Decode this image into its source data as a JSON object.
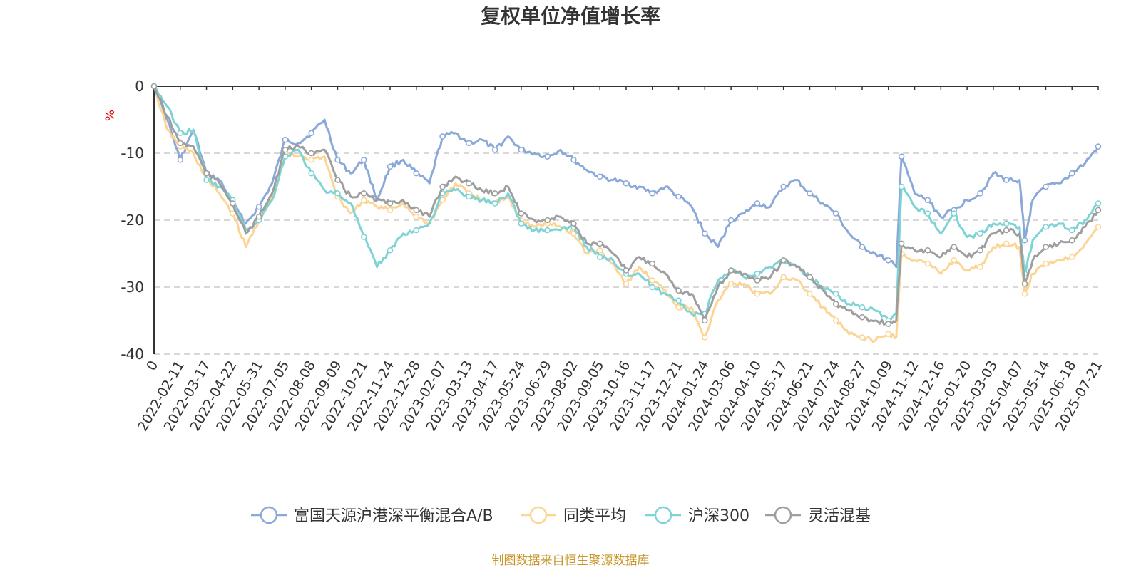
{
  "chart_data": {
    "type": "line",
    "title": "复权单位净值增长率",
    "ylabel": "%",
    "ylim": [
      -40,
      0
    ],
    "yticks": [
      "0",
      "-10",
      "-20",
      "-30",
      "-40"
    ],
    "ytick_values": [
      0,
      -10,
      -20,
      -30,
      -40
    ],
    "grid": true,
    "legend_position": "bottom",
    "source": "制图数据来自恒生聚源数据库",
    "x_labels": [
      "0",
      "2022-02-11",
      "2022-03-17",
      "2022-04-22",
      "2022-05-31",
      "2022-07-05",
      "2022-08-08",
      "2022-09-09",
      "2022-10-21",
      "2022-11-24",
      "2022-12-28",
      "2023-02-07",
      "2023-03-13",
      "2023-04-17",
      "2023-05-24",
      "2023-06-29",
      "2023-08-02",
      "2023-09-05",
      "2023-10-16",
      "2023-11-17",
      "2023-12-21",
      "2024-01-24",
      "2024-03-06",
      "2024-04-10",
      "2024-05-17",
      "2024-06-21",
      "2024-07-24",
      "2024-08-27",
      "2024-10-09",
      "2024-11-12",
      "2024-12-16",
      "2025-01-20",
      "2025-03-03",
      "2025-04-07",
      "2025-05-14",
      "2025-06-18",
      "2025-07-21"
    ],
    "x": [
      0,
      0.5,
      1,
      1.5,
      2,
      2.5,
      3,
      3.5,
      4,
      4.5,
      5,
      5.5,
      6,
      6.5,
      7,
      7.5,
      8,
      8.5,
      9,
      9.5,
      10,
      10.5,
      11,
      11.5,
      12,
      12.5,
      13,
      13.5,
      14,
      14.5,
      15,
      15.5,
      16,
      16.5,
      17,
      17.5,
      18,
      18.5,
      19,
      19.5,
      20,
      20.5,
      21,
      21.5,
      22,
      22.5,
      23,
      23.5,
      24,
      24.5,
      25,
      25.5,
      26,
      26.5,
      27,
      27.5,
      28,
      28.3,
      28.5,
      29,
      29.5,
      30,
      30.5,
      31,
      31.5,
      32,
      32.5,
      33,
      33.2,
      33.5,
      34,
      34.5,
      35,
      35.5,
      36
    ],
    "series": [
      {
        "name": "富国天源沪港深平衡混合A/B",
        "color": "#8aa8d8",
        "values": [
          0,
          -5,
          -11,
          -6.5,
          -13,
          -14,
          -17.5,
          -20.5,
          -18,
          -14.5,
          -8,
          -8.5,
          -7,
          -5,
          -11,
          -13,
          -11,
          -17,
          -12,
          -11,
          -13,
          -14.5,
          -7.5,
          -7,
          -8.5,
          -8,
          -9.5,
          -7.5,
          -9.5,
          -10,
          -10.5,
          -9.5,
          -11,
          -12.5,
          -13.5,
          -14,
          -14.5,
          -15,
          -16,
          -15,
          -16.5,
          -18,
          -22,
          -24,
          -20,
          -19,
          -17.5,
          -18,
          -15,
          -14,
          -16,
          -17.5,
          -19,
          -22,
          -24,
          -25,
          -26,
          -27,
          -10.5,
          -16,
          -17,
          -19.5,
          -18.5,
          -17,
          -16,
          -13,
          -14,
          -14,
          -23,
          -17,
          -15,
          -14.5,
          -13,
          -11.5,
          -9
        ]
      },
      {
        "name": "同类平均",
        "color": "#fcd494",
        "values": [
          0,
          -6.5,
          -9,
          -10,
          -14,
          -16,
          -19,
          -24,
          -20,
          -16.5,
          -10,
          -10.5,
          -11,
          -10.5,
          -16.5,
          -19,
          -17,
          -18,
          -18.5,
          -17.5,
          -19.5,
          -20.5,
          -17,
          -14.5,
          -16,
          -17,
          -17.5,
          -16.5,
          -20,
          -21,
          -20.5,
          -21,
          -22,
          -25,
          -24.5,
          -26.5,
          -29.5,
          -27,
          -29,
          -30.5,
          -33,
          -33,
          -37.5,
          -32,
          -29.5,
          -29.5,
          -31,
          -31,
          -28.5,
          -29,
          -31,
          -33,
          -35,
          -37,
          -37.5,
          -38,
          -37,
          -37.5,
          -25,
          -26,
          -26.5,
          -28,
          -26,
          -27.5,
          -27,
          -24,
          -23.5,
          -24,
          -31,
          -28,
          -26.5,
          -26,
          -25.5,
          -23.5,
          -21
        ]
      },
      {
        "name": "沪深300",
        "color": "#7dd3d6",
        "values": [
          0,
          -3,
          -7,
          -6.5,
          -14,
          -15,
          -17,
          -21.5,
          -20,
          -17,
          -10.5,
          -9.5,
          -13,
          -15.5,
          -16,
          -17.5,
          -22.5,
          -27,
          -24.5,
          -22,
          -21.5,
          -20.5,
          -16,
          -15.5,
          -16.5,
          -17,
          -17.5,
          -16,
          -20.5,
          -21.5,
          -21.5,
          -21.5,
          -21,
          -24,
          -25.5,
          -26,
          -28,
          -28,
          -30,
          -31,
          -32,
          -34,
          -34,
          -29,
          -27.5,
          -28.5,
          -28,
          -27,
          -26,
          -27,
          -28.5,
          -30,
          -31,
          -32.5,
          -33,
          -33.5,
          -35,
          -34,
          -15,
          -18,
          -19,
          -22,
          -19,
          -22.5,
          -22,
          -20.5,
          -20.5,
          -21,
          -28,
          -23,
          -21,
          -20.5,
          -21.5,
          -20,
          -17.5
        ]
      },
      {
        "name": "灵活混基",
        "color": "#9e9e9e",
        "values": [
          0,
          -4.5,
          -8.5,
          -9,
          -13,
          -14.5,
          -17.5,
          -22,
          -19.5,
          -16,
          -9.5,
          -9,
          -10,
          -9.5,
          -14,
          -16.5,
          -16,
          -17,
          -17.5,
          -17,
          -18.5,
          -19.5,
          -15,
          -13.5,
          -14.5,
          -15.5,
          -16,
          -15,
          -19,
          -20,
          -20,
          -19.5,
          -20.5,
          -23.5,
          -23.5,
          -25,
          -27.5,
          -25.5,
          -26.5,
          -28,
          -30.5,
          -31,
          -35,
          -30,
          -27.5,
          -28,
          -29,
          -28.5,
          -26,
          -27,
          -28.5,
          -30.5,
          -32.5,
          -33.5,
          -34.5,
          -35,
          -35.5,
          -35,
          -23.5,
          -24.5,
          -24.5,
          -25.5,
          -24,
          -25.5,
          -24.5,
          -22,
          -21.5,
          -22,
          -29.5,
          -26,
          -24,
          -23.5,
          -23,
          -21,
          -18.5
        ]
      }
    ]
  }
}
